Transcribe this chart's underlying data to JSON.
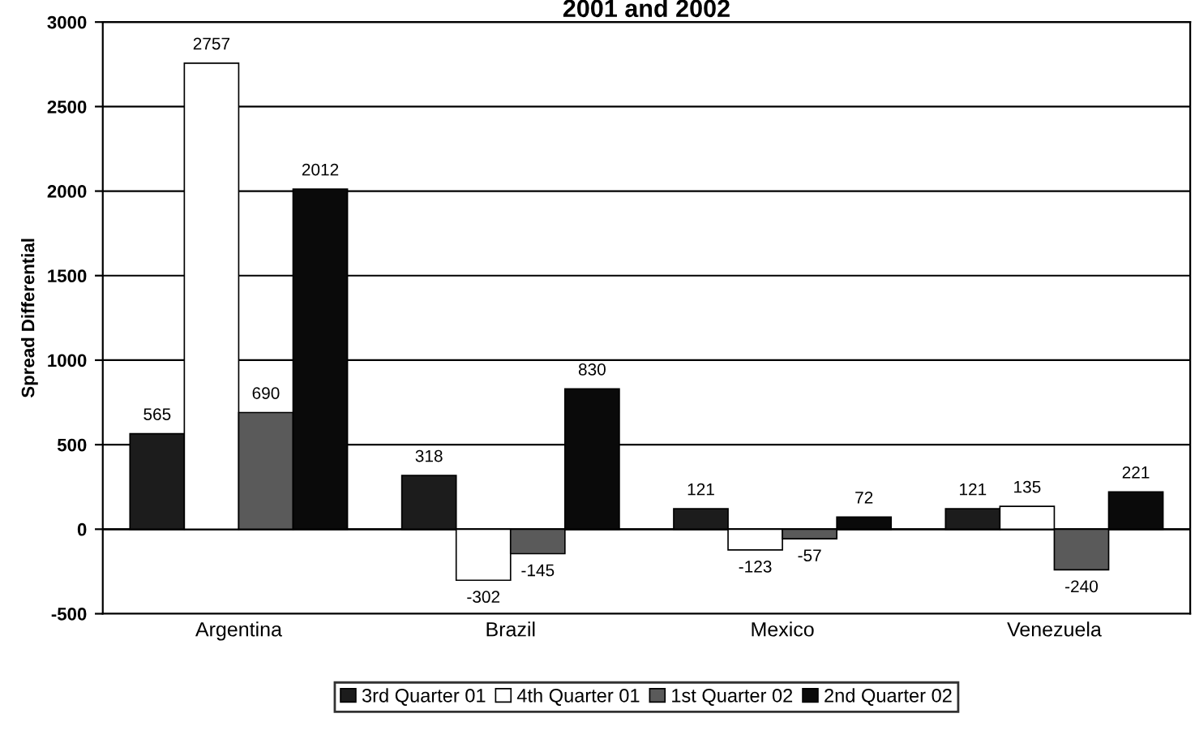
{
  "chart_data": {
    "type": "bar",
    "title": "2001 and 2002",
    "ylabel": "Spread Differential",
    "categories": [
      "Argentina",
      "Brazil",
      "Mexico",
      "Venezuela"
    ],
    "series": [
      {
        "name": "3rd Quarter 01",
        "color": "#1c1c1c",
        "values": [
          565,
          318,
          121,
          121
        ]
      },
      {
        "name": "4th Quarter 01",
        "color": "#ffffff",
        "values": [
          2757,
          -302,
          -123,
          135
        ]
      },
      {
        "name": "1st Quarter 02",
        "color": "#5a5a5a",
        "values": [
          690,
          -145,
          -57,
          -240
        ]
      },
      {
        "name": "2nd Quarter 02",
        "color": "#0a0a0a",
        "values": [
          2012,
          830,
          72,
          221
        ]
      }
    ],
    "ylim": [
      -500,
      3000
    ],
    "yticks": [
      -500,
      0,
      500,
      1000,
      1500,
      2000,
      2500,
      3000
    ],
    "grid": "y",
    "legend": "bottom",
    "data_labels": true
  }
}
